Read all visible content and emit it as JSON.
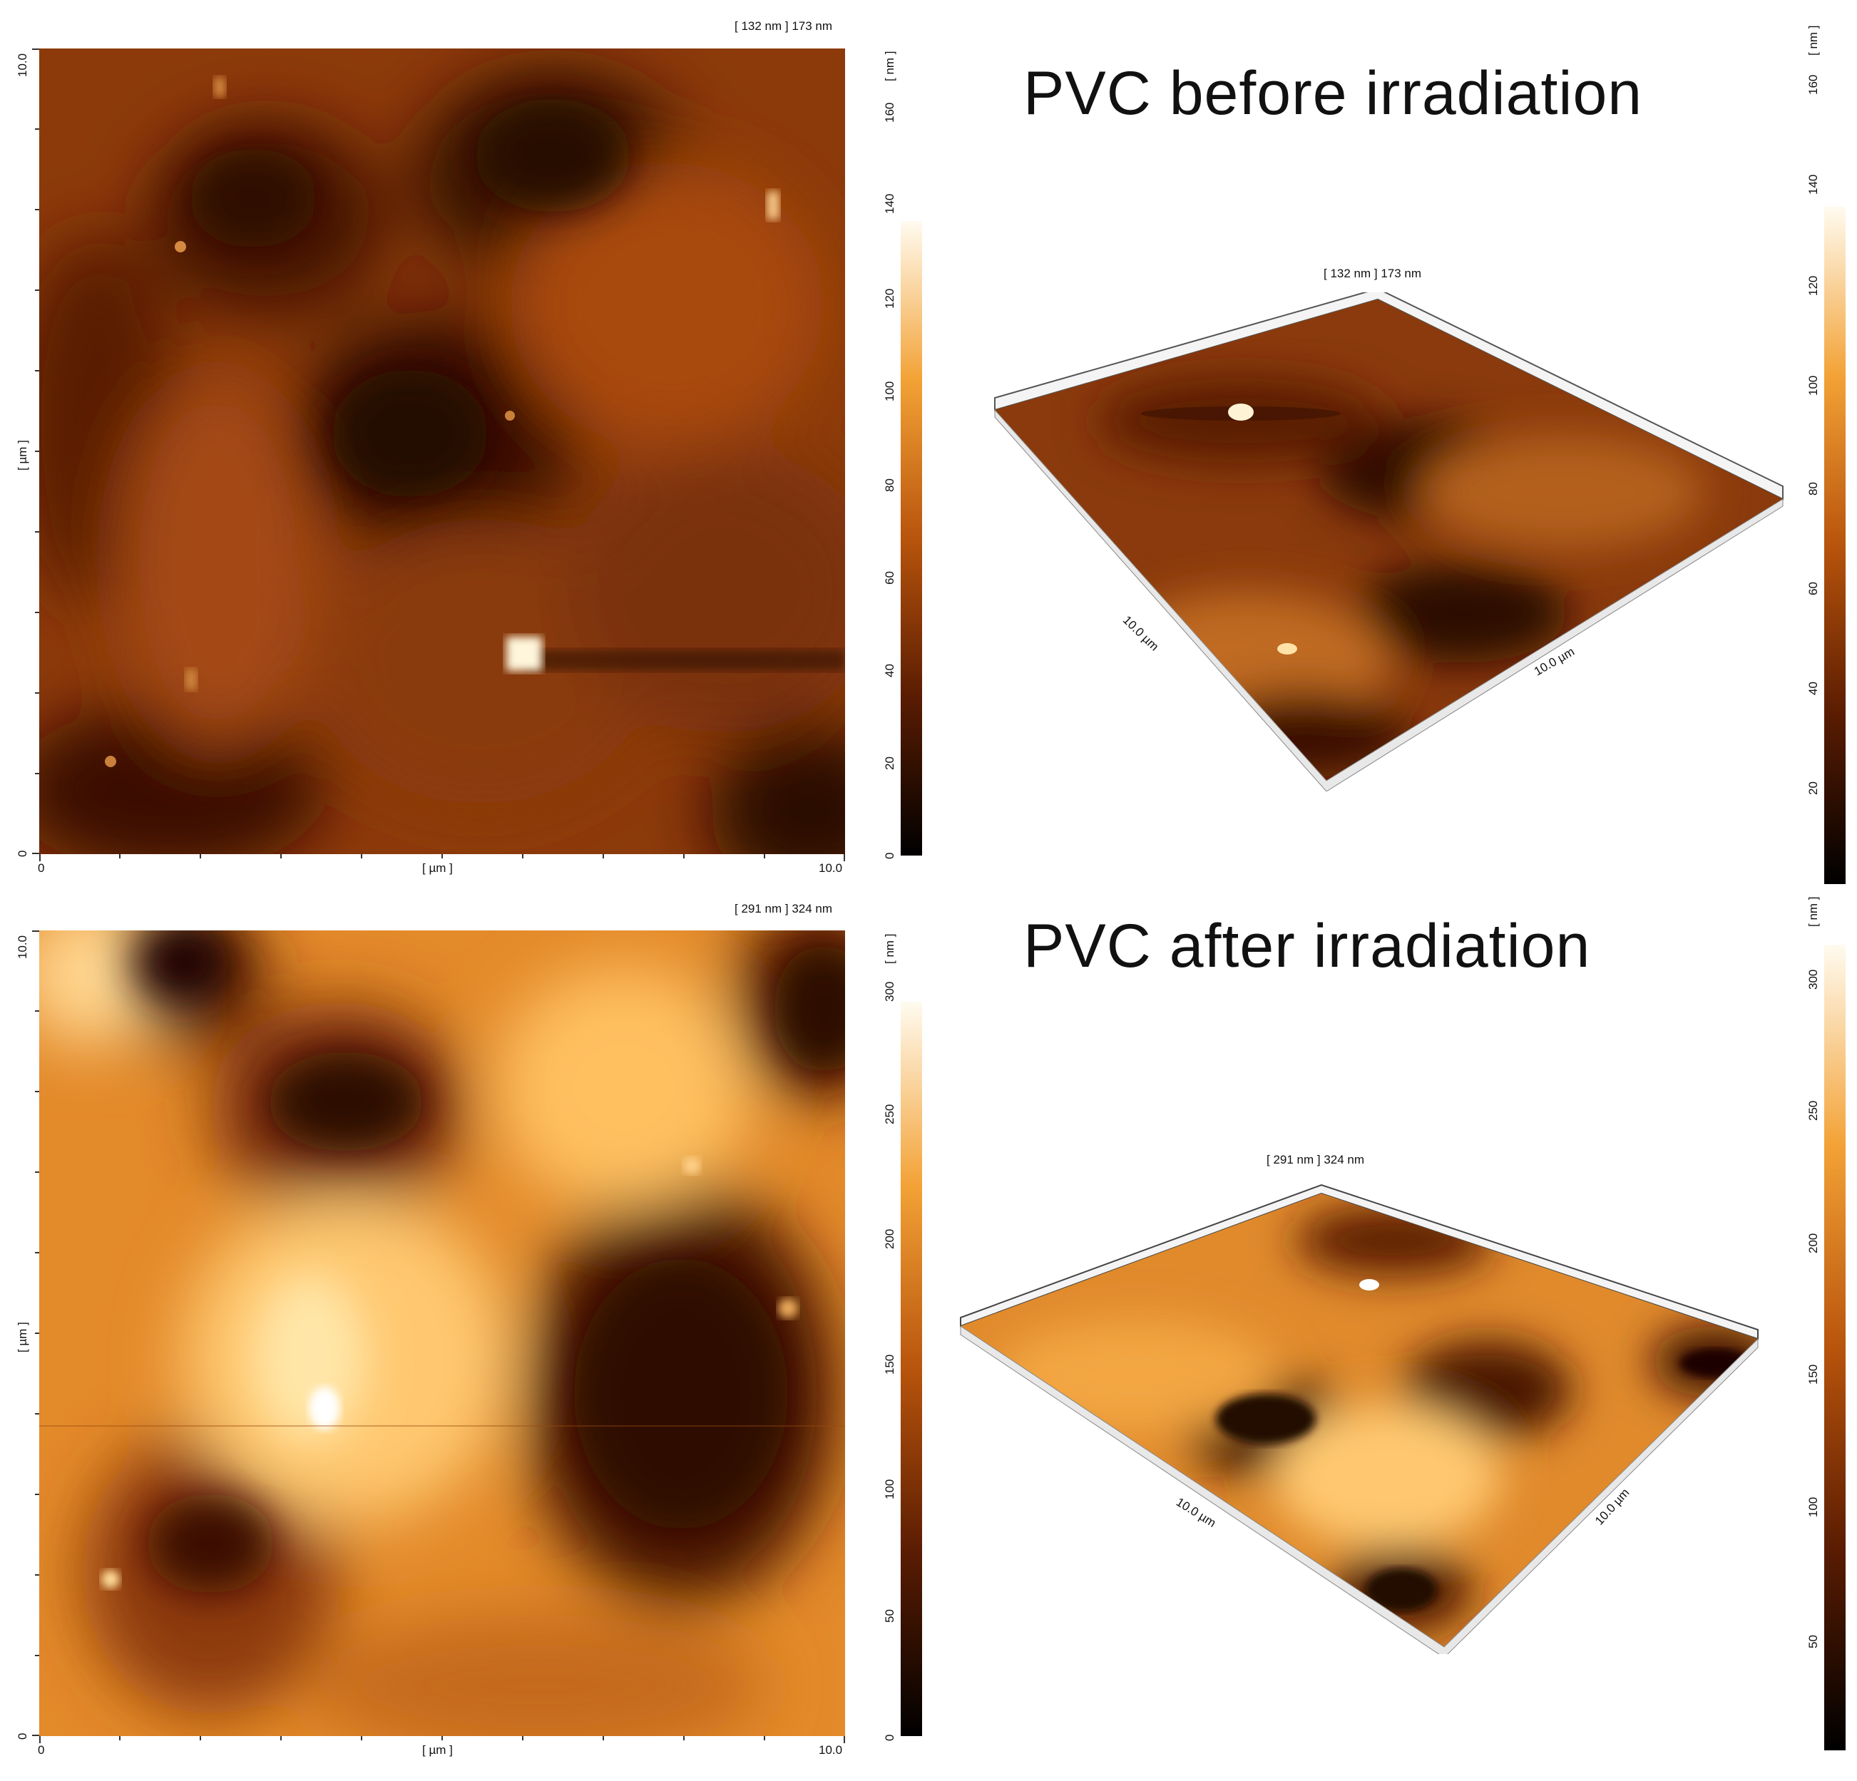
{
  "panels": [
    {
      "id": "before",
      "title": "PVC before irradiation",
      "range_label": "[ 132 nm ] 173 nm",
      "range_label_3d": "[ 132 nm ] 173 nm",
      "x_axis": {
        "label": "[ µm ]",
        "min": "0",
        "max": "10.0"
      },
      "y_axis": {
        "label": "[ µm ]",
        "min": "0",
        "max": "10.0"
      },
      "colorbar_2d": {
        "unit": "[ nm ]",
        "ticks": [
          "0",
          "20",
          "40",
          "60",
          "80",
          "100",
          "120",
          "140",
          "160"
        ]
      },
      "colorbar_3d": {
        "unit": "[ nm ]",
        "ticks": [
          "20",
          "40",
          "60",
          "80",
          "100",
          "120",
          "140",
          "160"
        ]
      },
      "dims_3d": [
        "10.0 µm",
        "10.0 µm"
      ]
    },
    {
      "id": "after",
      "title": "PVC after irradiation",
      "range_label": "[ 291 nm ] 324 nm",
      "range_label_3d": "[ 291 nm ] 324 nm",
      "x_axis": {
        "label": "[ µm ]",
        "min": "0",
        "max": "10.0"
      },
      "y_axis": {
        "label": "[ µm ]",
        "min": "0",
        "max": "10.0"
      },
      "colorbar_2d": {
        "unit": "[ nm ]",
        "ticks": [
          "0",
          "50",
          "100",
          "150",
          "200",
          "250",
          "300"
        ]
      },
      "colorbar_3d": {
        "unit": "[ nm ]",
        "ticks": [
          "50",
          "100",
          "150",
          "200",
          "250",
          "300"
        ]
      },
      "dims_3d": [
        "10.0 µm",
        "10.0 µm"
      ]
    }
  ],
  "colors": {
    "dark": "#1a0500",
    "mid": "#b0500c",
    "light": "#ffd890",
    "white": "#fffdf5"
  }
}
